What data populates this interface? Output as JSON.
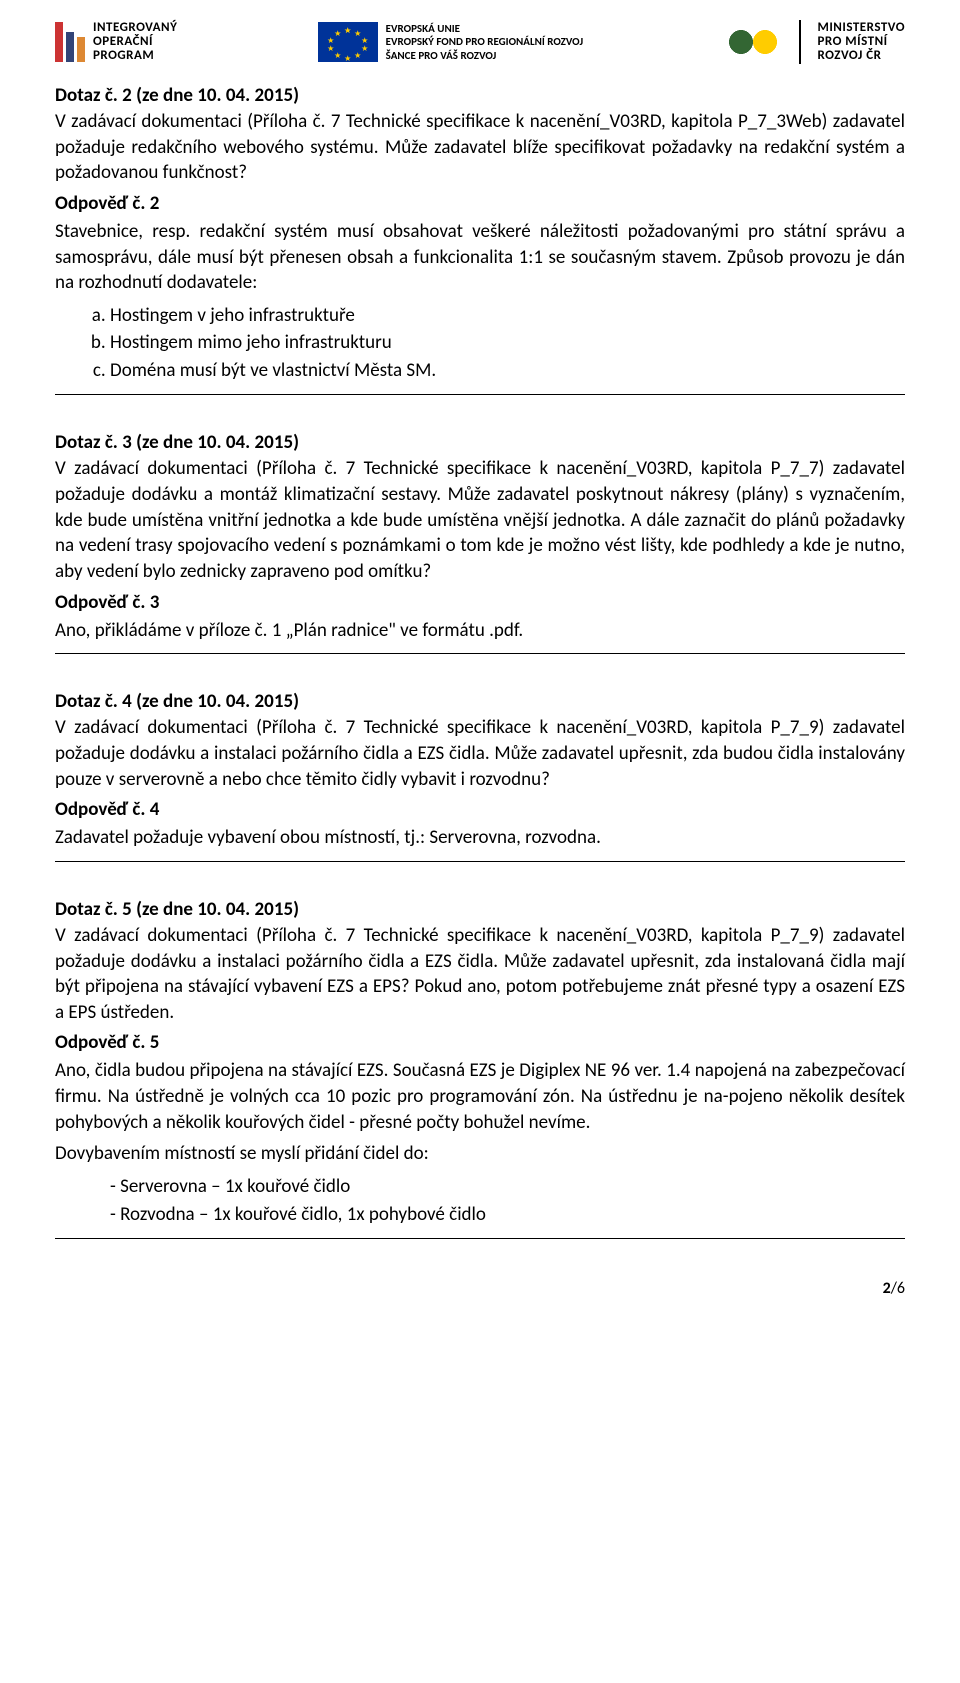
{
  "header": {
    "iop": {
      "line1": "INTEGROVANÝ",
      "line2": "OPERAČNÍ",
      "line3": "PROGRAM"
    },
    "eu": {
      "line1": "EVROPSKÁ UNIE",
      "line2": "EVROPSKÝ FOND PRO REGIONÁLNÍ ROZVOJ",
      "line3": "ŠANCE PRO VÁŠ ROZVOJ"
    },
    "mmr": {
      "line1": "MINISTERSTVO",
      "line2": "PRO MÍSTNÍ",
      "line3": "ROZVOJ ČR"
    }
  },
  "q2": {
    "title": "Dotaz č. 2 (ze dne 10. 04. 2015)",
    "body": "V zadávací dokumentaci (Příloha č. 7 Technické specifikace k nacenění_V03RD, kapitola P_7_3Web) zadavatel požaduje redakčního webového systému. Může zadavatel blíže specifikovat požadavky na redakční systém a požadovanou funkčnost?",
    "ans_title": "Odpověď č. 2",
    "ans_body": "Stavebnice, resp. redakční systém musí obsahovat veškeré náležitosti požadovanými pro státní správu a samosprávu, dále musí být přenesen obsah a funkcionalita 1:1 se současným stavem. Způsob provozu je dán na rozhodnutí dodavatele:",
    "ans_list": [
      "Hostingem v jeho infrastruktuře",
      "Hostingem mimo jeho infrastrukturu",
      "Doména musí být ve vlastnictví Města SM."
    ]
  },
  "q3": {
    "title": "Dotaz č. 3 (ze dne 10. 04. 2015)",
    "body": "V zadávací dokumentaci (Příloha č. 7 Technické specifikace k nacenění_V03RD, kapitola P_7_7) zadavatel požaduje dodávku a montáž klimatizační sestavy. Může zadavatel poskytnout nákresy (plány) s vyznačením, kde bude umístěna vnitřní jednotka a kde bude umístěna vnější jednotka. A dále zaznačit do plánů požadavky na vedení trasy spojovacího vedení s poznámkami o tom kde je možno vést lišty, kde podhledy a kde je nutno, aby vedení bylo zednicky zapraveno pod omítku?",
    "ans_title": "Odpověď č. 3",
    "ans_body": "Ano, přikládáme v příloze č. 1 „Plán radnice\" ve formátu .pdf."
  },
  "q4": {
    "title": "Dotaz č. 4 (ze dne 10. 04. 2015)",
    "body": "V zadávací dokumentaci (Příloha č. 7 Technické specifikace k nacenění_V03RD, kapitola P_7_9) zadavatel požaduje dodávku a instalaci požárního čidla a EZS čidla. Může zadavatel upřesnit, zda budou čidla instalovány pouze v serverovně a nebo chce těmito čidly vybavit i rozvodnu?",
    "ans_title": "Odpověď č. 4",
    "ans_body": "Zadavatel požaduje vybavení obou místností, tj.: Serverovna, rozvodna."
  },
  "q5": {
    "title": "Dotaz č. 5 (ze dne 10. 04. 2015)",
    "body": "V zadávací dokumentaci (Příloha č. 7 Technické specifikace k nacenění_V03RD, kapitola P_7_9) zadavatel požaduje dodávku a instalaci požárního čidla a EZS čidla. Může zadavatel upřesnit, zda instalovaná čidla mají být připojena na stávající vybavení EZS a EPS? Pokud ano, potom potřebujeme znát přesné typy a osazení EZS a EPS ústředen.",
    "ans_title": "Odpověď č. 5",
    "ans_body": "Ano, čidla budou připojena na stávající EZS.  Současná EZS je Digiplex NE 96 ver. 1.4 napojená na zabezpečovací firmu. Na ústředně je volných cca 10 pozic pro programování zón. Na ústřednu je na-pojeno několik desítek pohybových a několik kouřových čidel - přesné počty bohužel nevíme.",
    "ans_body2": "Dovybavením místností se myslí přidání čidel do:",
    "ans_list": [
      "Serverovna – 1x kouřové čidlo",
      "Rozvodna – 1x kouřové čidlo, 1x pohybové čidlo"
    ]
  },
  "pagenum": {
    "current": "2",
    "total": "/6"
  }
}
